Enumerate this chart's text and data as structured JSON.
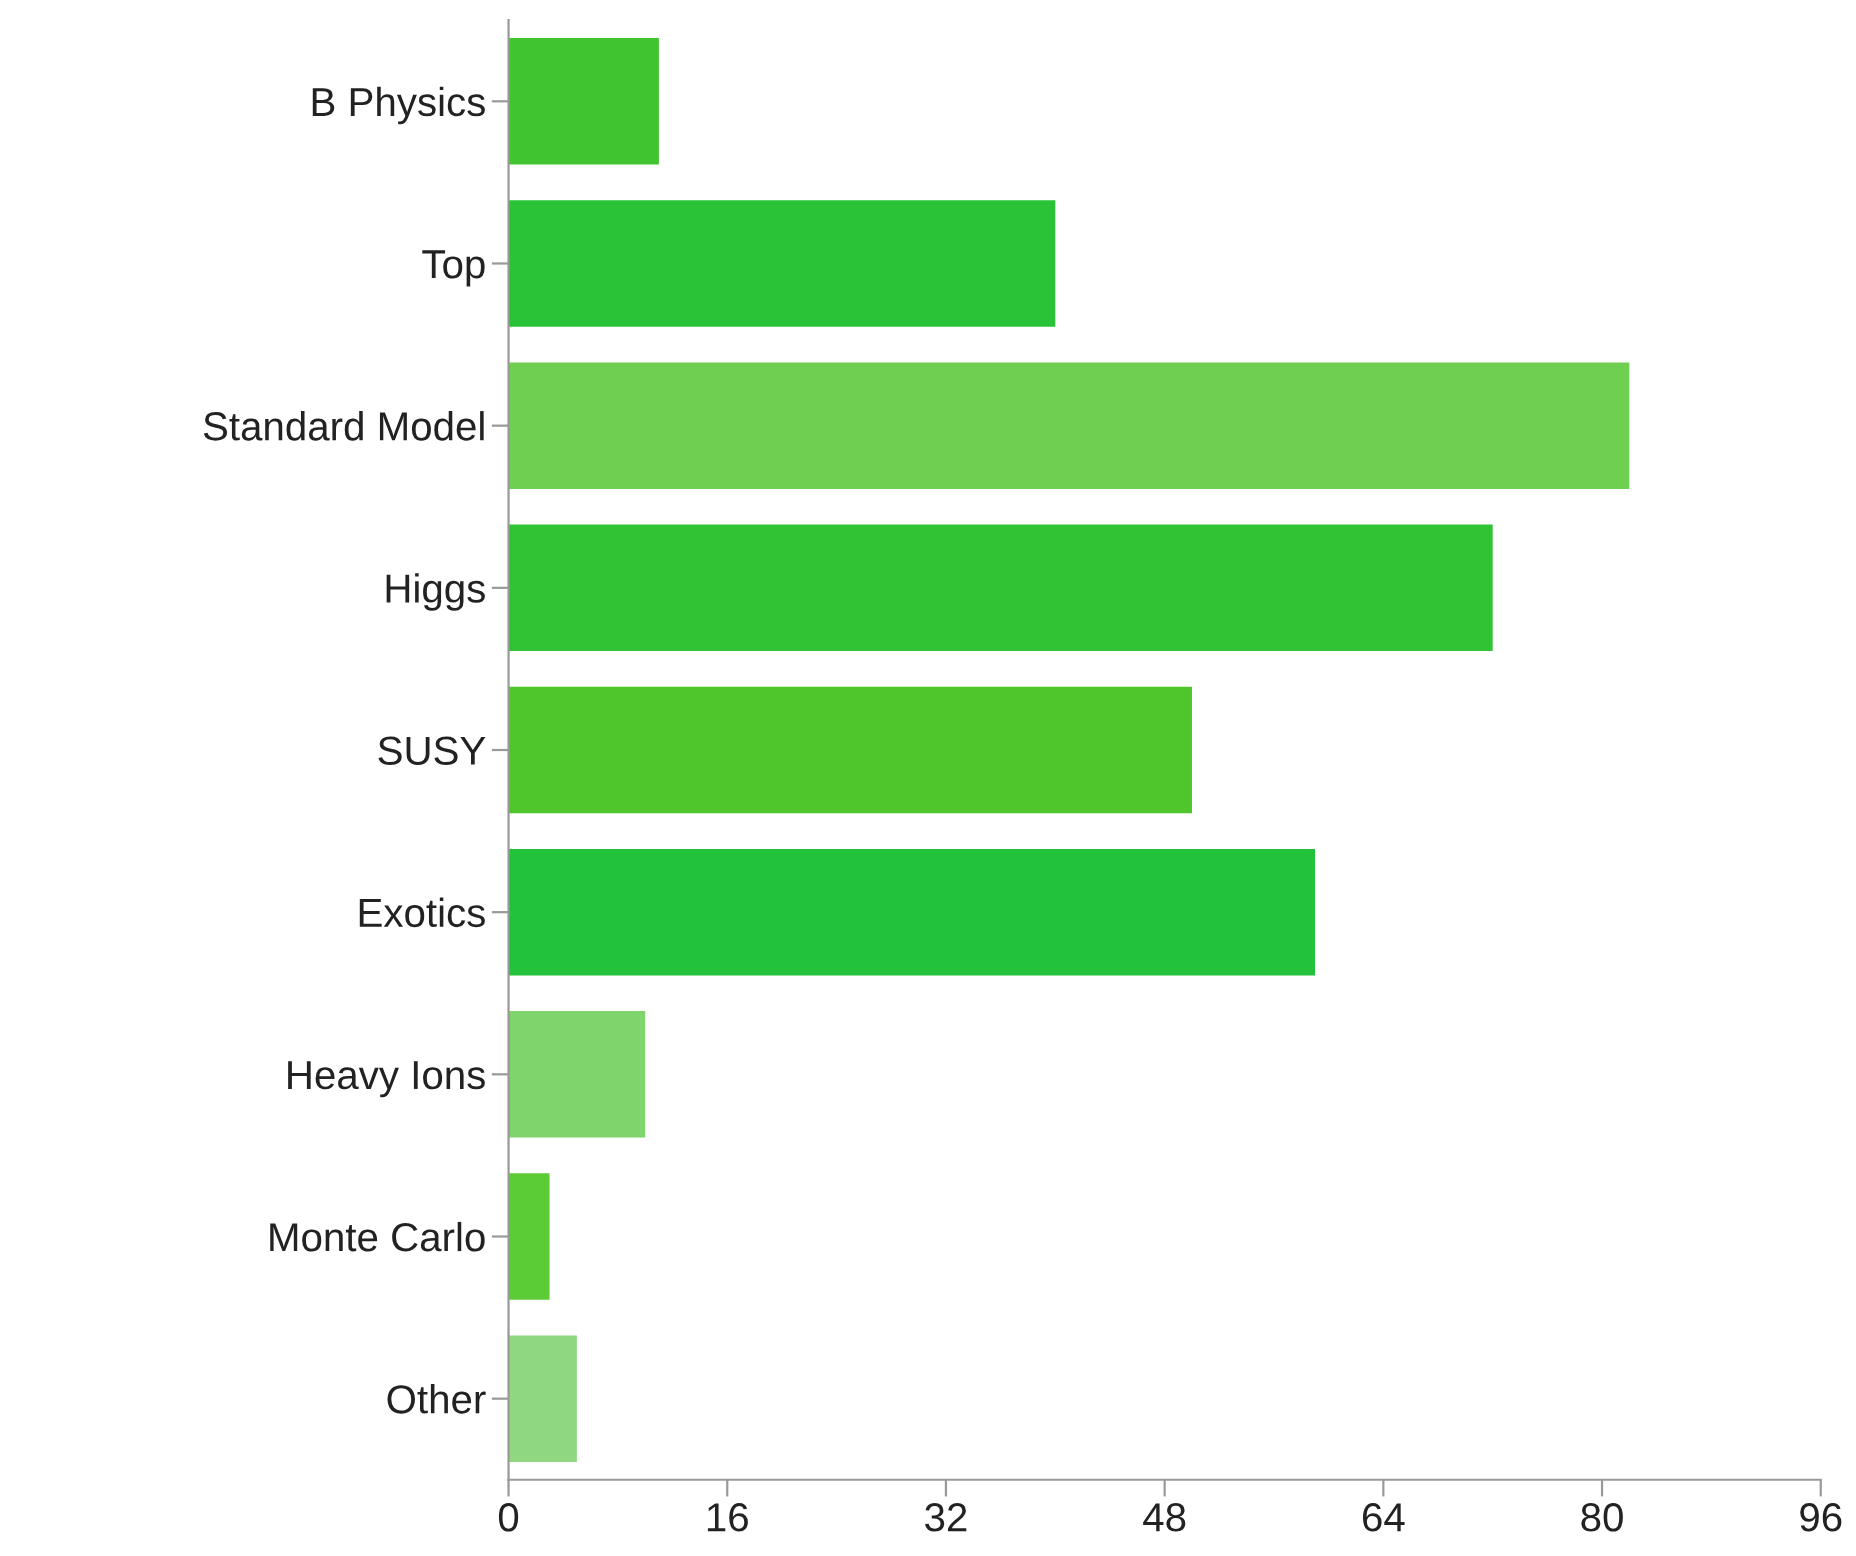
{
  "chart_data": {
    "type": "bar",
    "orientation": "horizontal",
    "categories": [
      "B Physics",
      "Top",
      "Standard Model",
      "Higgs",
      "SUSY",
      "Exotics",
      "Heavy Ions",
      "Monte Carlo",
      "Other"
    ],
    "values": [
      11,
      40,
      82,
      72,
      50,
      59,
      10,
      3,
      5
    ],
    "colors": [
      "#40c530",
      "#2ac337",
      "#6fcf50",
      "#32c335",
      "#4fc72c",
      "#22c23b",
      "#7fd46c",
      "#5ccc36",
      "#90d880"
    ],
    "xlim": [
      0,
      96
    ],
    "xticks": [
      0,
      16,
      32,
      48,
      64,
      80,
      96
    ],
    "grid": false,
    "legend": false
  }
}
